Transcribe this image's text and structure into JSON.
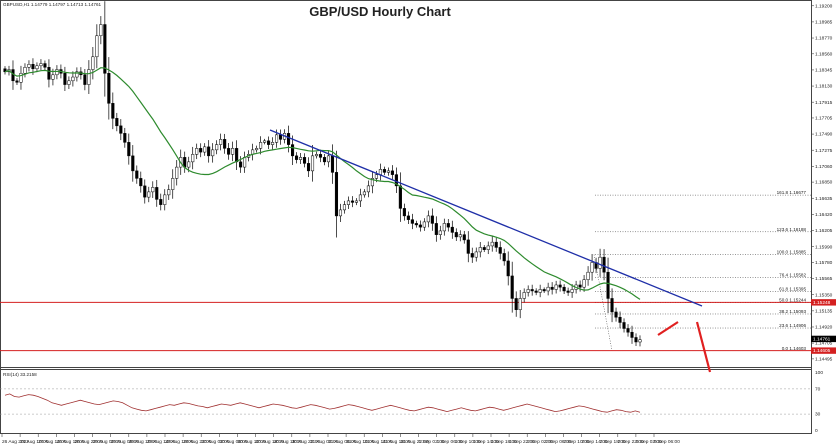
{
  "header": {
    "symbol_line": "GBPUSD,H1  1.14779 1.14797 1.14713 1.14761",
    "title": "GBP/USD Hourly Chart",
    "rsi_label": "RSI(14) 33.2158"
  },
  "colors": {
    "bull": "#ffffff",
    "bear": "#000000",
    "candle_outline": "#000000",
    "ma": "#2e8b2e",
    "trendline": "#1f2fa8",
    "horizontal": "#d42020",
    "arrow": "#e02020",
    "fib_dots": "#333333",
    "rsi_line": "#a03030",
    "price_box": "#000000"
  },
  "chart_data": {
    "type": "candlestick",
    "title": "GBP/USD Hourly Chart",
    "price_axis": {
      "ticks": [
        "1.19200",
        "1.18985",
        "1.18770",
        "1.18560",
        "1.18345",
        "1.18130",
        "1.17915",
        "1.17705",
        "1.17490",
        "1.17275",
        "1.17060",
        "1.16850",
        "1.16635",
        "1.16420",
        "1.16205",
        "1.15990",
        "1.15780",
        "1.15565",
        "1.15350",
        "1.15135",
        "1.14920",
        "1.14705",
        "1.14495"
      ],
      "ylim": [
        1.144,
        1.1925
      ]
    },
    "time_axis": {
      "labels": [
        "26 Aug 2022",
        "26 Aug 10:00",
        "26 Aug 14:00",
        "26 Aug 18:00",
        "26 Aug 22:00",
        "29 Aug 02:00",
        "29 Aug 06:00",
        "29 Aug 10:00",
        "29 Aug 14:00",
        "29 Aug 18:00",
        "29 Aug 22:00",
        "30 Aug 02:00",
        "30 Aug 06:00",
        "30 Aug 10:00",
        "30 Aug 14:00",
        "30 Aug 18:00",
        "30 Aug 22:00",
        "31 Aug 02:00",
        "31 Aug 06:00",
        "31 Aug 10:00",
        "31 Aug 14:00",
        "31 Aug 18:00",
        "31 Aug 22:00",
        "1 Sep 02:00",
        "1 Sep 06:00",
        "1 Sep 10:00",
        "1 Sep 14:00",
        "1 Sep 18:00",
        "1 Sep 22:00",
        "2 Sep 02:00",
        "2 Sep 06:00",
        "2 Sep 10:00",
        "2 Sep 14:00",
        "2 Sep 18:00",
        "2 Sep 22:00",
        "5 Sep 02:00",
        "5 Sep 06:00"
      ]
    },
    "closes": [
      1.1832,
      1.1835,
      1.182,
      1.1818,
      1.183,
      1.1838,
      1.1842,
      1.1836,
      1.184,
      1.1843,
      1.1838,
      1.1822,
      1.1828,
      1.1835,
      1.183,
      1.1815,
      1.182,
      1.1825,
      1.1832,
      1.1828,
      1.1815,
      1.1835,
      1.1852,
      1.188,
      1.1895,
      1.183,
      1.179,
      1.177,
      1.176,
      1.175,
      1.1738,
      1.172,
      1.17,
      1.169,
      1.168,
      1.1665,
      1.1672,
      1.1678,
      1.1662,
      1.1655,
      1.1668,
      1.1675,
      1.169,
      1.1705,
      1.1718,
      1.1705,
      1.1712,
      1.1722,
      1.173,
      1.1725,
      1.1732,
      1.172,
      1.1728,
      1.1735,
      1.1742,
      1.173,
      1.1722,
      1.173,
      1.1712,
      1.1705,
      1.1718,
      1.1722,
      1.1728,
      1.173,
      1.1738,
      1.174,
      1.1735,
      1.1738,
      1.1748,
      1.1742,
      1.175,
      1.1735,
      1.172,
      1.1715,
      1.1718,
      1.171,
      1.17,
      1.172,
      1.1722,
      1.1718,
      1.1712,
      1.172,
      1.1698,
      1.164,
      1.1648,
      1.1655,
      1.166,
      1.1658,
      1.166,
      1.1668,
      1.1672,
      1.168,
      1.169,
      1.1695,
      1.1702,
      1.1698,
      1.17,
      1.1695,
      1.168,
      1.165,
      1.164,
      1.1635,
      1.163,
      1.1628,
      1.1625,
      1.1632,
      1.164,
      1.163,
      1.1615,
      1.162,
      1.163,
      1.1625,
      1.1618,
      1.1612,
      1.1615,
      1.1608,
      1.159,
      1.1585,
      1.1592,
      1.1598,
      1.1595,
      1.16,
      1.1605,
      1.1598,
      1.159,
      1.158,
      1.156,
      1.153,
      1.1515,
      1.153,
      1.1538,
      1.1542,
      1.154,
      1.1538,
      1.1542,
      1.154,
      1.1545,
      1.1542,
      1.1548,
      1.1545,
      1.154,
      1.1538,
      1.1542,
      1.1548,
      1.1545,
      1.1555,
      1.1565,
      1.1578,
      1.157,
      1.1585,
      1.1565,
      1.153,
      1.1512,
      1.1505,
      1.1498,
      1.149,
      1.1485,
      1.1478,
      1.1472,
      1.1475
    ],
    "rsi": [
      60,
      62,
      58,
      57,
      59,
      61,
      60,
      58,
      55,
      52,
      48,
      46,
      44,
      46,
      48,
      50,
      52,
      50,
      48,
      46,
      45,
      47,
      49,
      51,
      50,
      48,
      44,
      40,
      38,
      36,
      35,
      37,
      39,
      41,
      43,
      45,
      44,
      46,
      48,
      47,
      45,
      43,
      42,
      40,
      42,
      44,
      46,
      45,
      44,
      46,
      48,
      46,
      44,
      42,
      40,
      42,
      44,
      46,
      45,
      44,
      42,
      40,
      39,
      41,
      43,
      45,
      44,
      42,
      40,
      38,
      39,
      41,
      43,
      45,
      44,
      42,
      40,
      38,
      36,
      38,
      40,
      42,
      44,
      42,
      40,
      38,
      36,
      35,
      37,
      39,
      41,
      40,
      38,
      36,
      34,
      36,
      38,
      40,
      38,
      36,
      35,
      37,
      39,
      41,
      40,
      38,
      36,
      38,
      40,
      42,
      44,
      46,
      44,
      42,
      40,
      38,
      36,
      34,
      35,
      37,
      39,
      41,
      43,
      42,
      40,
      38,
      36,
      34,
      33,
      35,
      37,
      36,
      34,
      33,
      35,
      33
    ],
    "rsi_axis": {
      "ticks": [
        "100",
        "70",
        "30",
        "0"
      ]
    },
    "moving_average": "green line",
    "trendline": "descending blue line",
    "horizontal_levels": [
      {
        "price": 1.15248,
        "label": "1.15248"
      },
      {
        "price": 1.14605,
        "label": "1.14605"
      }
    ],
    "current_price": "1.14761",
    "fib_levels": [
      {
        "label": "161.8 1.16677",
        "price": 1.16677
      },
      {
        "label": "123.6 1.16188",
        "price": 1.16188
      },
      {
        "label": "100.0 1.15885",
        "price": 1.15885
      },
      {
        "label": "76.4 1.15582",
        "price": 1.15582
      },
      {
        "label": "61.8 1.15395",
        "price": 1.15395
      },
      {
        "label": "50.0 1.15244",
        "price": 1.15244
      },
      {
        "label": "38.2 1.15093",
        "price": 1.15093
      },
      {
        "label": "23.6 1.14906",
        "price": 1.14906
      },
      {
        "label": "0.0 1.14603",
        "price": 1.14603
      }
    ]
  }
}
